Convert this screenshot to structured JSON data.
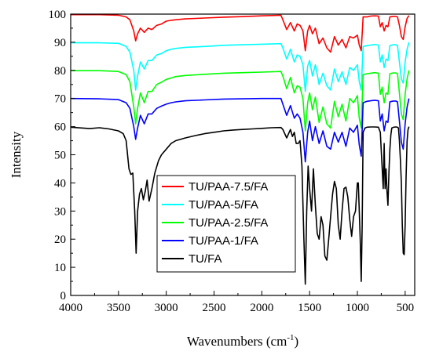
{
  "chart_data": {
    "type": "line",
    "title": "",
    "xlabel": "Wavenumbers (cm",
    "xlabel_sup": "-1",
    "xlabel_close": ")",
    "ylabel": "Intensity",
    "xlim": [
      4000,
      400
    ],
    "x_reversed": true,
    "ylim": [
      0,
      100
    ],
    "x_ticks": [
      4000,
      3500,
      3000,
      2500,
      2000,
      1500,
      1000,
      500
    ],
    "x_tick_labels": [
      "4000",
      "3500",
      "3000",
      "2500",
      "2000",
      "1500",
      "1000",
      "500"
    ],
    "y_ticks": [
      0,
      10,
      20,
      30,
      40,
      50,
      60,
      70,
      80,
      90,
      100
    ],
    "y_tick_labels": [
      "0",
      "10",
      "20",
      "30",
      "40",
      "50",
      "60",
      "70",
      "80",
      "90",
      "100"
    ],
    "grid": false,
    "legend_position": "center",
    "series": [
      {
        "name": "TU/PAA-7.5/FA",
        "color": "#ff0000",
        "x": [
          4000,
          3700,
          3500,
          3420,
          3380,
          3340,
          3320,
          3300,
          3270,
          3230,
          3190,
          3150,
          3100,
          3050,
          3000,
          2950,
          2900,
          2800,
          2600,
          2400,
          2200,
          2000,
          1800,
          1780,
          1740,
          1700,
          1660,
          1630,
          1600,
          1570,
          1545,
          1520,
          1500,
          1470,
          1440,
          1400,
          1360,
          1320,
          1280,
          1240,
          1200,
          1160,
          1120,
          1080,
          1040,
          1000,
          980,
          960,
          940,
          900,
          860,
          820,
          780,
          760,
          740,
          720,
          700,
          680,
          660,
          640,
          620,
          600,
          580,
          560,
          540,
          520,
          500,
          480,
          460
        ],
        "y": [
          99.8,
          99.8,
          99.6,
          99.0,
          98.0,
          94.0,
          90.5,
          93.0,
          95.0,
          93.5,
          95.0,
          94.5,
          96.0,
          96.5,
          97.5,
          97.8,
          98.0,
          98.3,
          98.6,
          98.9,
          99.1,
          99.4,
          99.6,
          98.0,
          94.5,
          97.0,
          94.0,
          96.5,
          96.0,
          94.0,
          87.0,
          94.0,
          96.0,
          93.0,
          95.0,
          89.5,
          91.5,
          88.0,
          86.5,
          92.0,
          89.0,
          91.0,
          88.0,
          92.0,
          91.5,
          92.5,
          89.0,
          87.0,
          99.0,
          99.0,
          99.3,
          99.4,
          99.3,
          95.5,
          97.0,
          94.0,
          96.0,
          95.5,
          99.0,
          99.1,
          99.2,
          99.2,
          99.0,
          96.0,
          92.0,
          91.0,
          95.5,
          98.5,
          99.5
        ]
      },
      {
        "name": "TU/PAA-5/FA",
        "color": "#00ffff",
        "x": [
          4000,
          3700,
          3500,
          3420,
          3380,
          3340,
          3320,
          3300,
          3270,
          3230,
          3190,
          3150,
          3100,
          3050,
          3000,
          2950,
          2900,
          2800,
          2600,
          2400,
          2200,
          2000,
          1800,
          1780,
          1740,
          1700,
          1660,
          1630,
          1600,
          1570,
          1545,
          1520,
          1500,
          1470,
          1440,
          1400,
          1360,
          1320,
          1280,
          1240,
          1200,
          1160,
          1120,
          1080,
          1040,
          1000,
          980,
          960,
          940,
          900,
          860,
          820,
          780,
          760,
          740,
          720,
          700,
          680,
          660,
          640,
          620,
          600,
          580,
          560,
          540,
          520,
          500,
          480,
          460
        ],
        "y": [
          89.8,
          89.8,
          89.6,
          88.5,
          86.5,
          80.0,
          73.0,
          78.0,
          83.0,
          80.5,
          83.5,
          83.5,
          85.5,
          86.0,
          87.0,
          87.5,
          87.8,
          88.2,
          88.5,
          88.9,
          89.1,
          89.3,
          89.5,
          88.0,
          84.0,
          87.5,
          83.0,
          85.5,
          85.0,
          82.0,
          72.5,
          81.5,
          83.5,
          78.0,
          82.0,
          75.0,
          79.0,
          74.5,
          73.0,
          80.5,
          76.0,
          79.5,
          75.0,
          81.0,
          80.0,
          82.0,
          76.0,
          73.0,
          88.5,
          88.8,
          89.0,
          89.2,
          89.0,
          83.0,
          85.5,
          81.0,
          84.0,
          83.5,
          88.8,
          89.0,
          89.1,
          89.1,
          88.8,
          83.0,
          77.0,
          75.5,
          83.0,
          87.5,
          90.0
        ]
      },
      {
        "name": "TU/PAA-2.5/FA",
        "color": "#00ff00",
        "x": [
          4000,
          3700,
          3500,
          3420,
          3380,
          3340,
          3320,
          3300,
          3270,
          3230,
          3190,
          3150,
          3100,
          3050,
          3000,
          2950,
          2900,
          2800,
          2600,
          2400,
          2200,
          2000,
          1800,
          1780,
          1740,
          1700,
          1660,
          1630,
          1600,
          1570,
          1545,
          1520,
          1500,
          1470,
          1440,
          1400,
          1360,
          1320,
          1280,
          1240,
          1200,
          1160,
          1120,
          1080,
          1040,
          1000,
          980,
          960,
          940,
          900,
          860,
          820,
          780,
          760,
          740,
          720,
          700,
          680,
          660,
          640,
          620,
          600,
          580,
          560,
          540,
          520,
          500,
          480,
          460
        ],
        "y": [
          79.9,
          79.9,
          79.6,
          78.5,
          76.0,
          67.0,
          61.0,
          66.5,
          72.0,
          68.5,
          72.5,
          72.5,
          75.0,
          75.8,
          76.8,
          77.3,
          77.8,
          78.2,
          78.6,
          79.0,
          79.2,
          79.4,
          79.6,
          78.0,
          73.5,
          77.5,
          72.0,
          74.5,
          74.0,
          70.0,
          58.5,
          68.5,
          72.0,
          66.0,
          70.5,
          61.5,
          67.0,
          61.0,
          59.5,
          69.0,
          63.5,
          68.0,
          62.0,
          70.0,
          68.5,
          71.0,
          63.0,
          59.5,
          78.5,
          78.8,
          79.0,
          79.2,
          79.0,
          71.5,
          74.0,
          68.5,
          72.0,
          71.5,
          78.8,
          79.0,
          79.1,
          79.1,
          78.8,
          72.0,
          64.5,
          62.5,
          71.5,
          77.0,
          80.0
        ]
      },
      {
        "name": "TU/PAA-1/FA",
        "color": "#0000ff",
        "x": [
          4000,
          3700,
          3500,
          3420,
          3380,
          3340,
          3320,
          3300,
          3270,
          3230,
          3190,
          3150,
          3100,
          3050,
          3000,
          2950,
          2900,
          2800,
          2600,
          2400,
          2200,
          2000,
          1800,
          1780,
          1740,
          1700,
          1660,
          1630,
          1600,
          1570,
          1545,
          1520,
          1500,
          1470,
          1440,
          1400,
          1360,
          1320,
          1280,
          1240,
          1200,
          1160,
          1120,
          1080,
          1040,
          1000,
          980,
          960,
          940,
          900,
          860,
          820,
          780,
          760,
          740,
          720,
          700,
          680,
          660,
          640,
          620,
          600,
          580,
          560,
          540,
          520,
          500,
          480,
          460
        ],
        "y": [
          70.0,
          69.9,
          69.6,
          68.5,
          66.5,
          60.0,
          55.5,
          59.5,
          64.0,
          61.0,
          64.5,
          64.5,
          66.5,
          67.3,
          68.0,
          68.5,
          68.8,
          69.2,
          69.5,
          69.8,
          69.9,
          70.0,
          70.0,
          68.0,
          64.0,
          67.5,
          63.0,
          64.5,
          63.0,
          58.0,
          47.5,
          58.0,
          62.0,
          55.0,
          60.0,
          54.0,
          58.5,
          53.0,
          52.0,
          58.0,
          54.5,
          58.0,
          53.0,
          59.5,
          58.0,
          60.5,
          53.5,
          49.5,
          68.5,
          69.0,
          69.2,
          69.4,
          69.2,
          62.0,
          64.5,
          58.5,
          62.0,
          61.5,
          68.8,
          69.0,
          69.1,
          69.1,
          68.8,
          62.0,
          54.5,
          52.0,
          61.0,
          67.0,
          70.0
        ]
      },
      {
        "name": "TU/FA",
        "color": "#000000",
        "x": [
          4000,
          3800,
          3700,
          3600,
          3500,
          3450,
          3420,
          3390,
          3370,
          3350,
          3330,
          3315,
          3300,
          3280,
          3260,
          3240,
          3220,
          3200,
          3180,
          3150,
          3120,
          3080,
          3050,
          3000,
          2950,
          2900,
          2800,
          2700,
          2600,
          2500,
          2400,
          2300,
          2200,
          2100,
          2000,
          1900,
          1800,
          1780,
          1740,
          1700,
          1680,
          1660,
          1640,
          1620,
          1600,
          1580,
          1560,
          1545,
          1530,
          1515,
          1500,
          1480,
          1460,
          1440,
          1420,
          1400,
          1380,
          1360,
          1340,
          1320,
          1300,
          1280,
          1260,
          1240,
          1220,
          1200,
          1180,
          1160,
          1140,
          1120,
          1100,
          1080,
          1060,
          1040,
          1020,
          1000,
          990,
          980,
          970,
          960,
          950,
          940,
          920,
          900,
          860,
          820,
          780,
          760,
          740,
          730,
          720,
          710,
          700,
          690,
          680,
          670,
          660,
          650,
          640,
          620,
          600,
          580,
          570,
          560,
          550,
          540,
          530,
          520,
          510,
          500,
          490,
          480,
          470,
          460
        ],
        "y": [
          59.8,
          59.3,
          59.6,
          59.2,
          58.5,
          57.5,
          55.0,
          45.0,
          43.0,
          43.5,
          30.0,
          15.0,
          30.0,
          36.0,
          38.0,
          34.0,
          37.0,
          41.0,
          33.5,
          38.0,
          43.5,
          48.0,
          50.0,
          52.0,
          54.0,
          55.0,
          56.0,
          56.8,
          57.5,
          58.0,
          58.5,
          58.8,
          59.0,
          59.2,
          59.4,
          59.6,
          59.7,
          59.0,
          56.0,
          59.0,
          56.5,
          58.0,
          54.0,
          54.0,
          55.0,
          46.0,
          20.0,
          4.0,
          30.0,
          46.0,
          38.0,
          30.0,
          45.0,
          32.0,
          22.0,
          20.0,
          28.0,
          25.0,
          14.0,
          12.5,
          20.0,
          28.0,
          36.0,
          40.5,
          38.0,
          25.0,
          20.0,
          30.0,
          38.0,
          38.5,
          35.0,
          27.0,
          21.0,
          28.0,
          30.0,
          40.0,
          40.0,
          30.0,
          20.0,
          5.0,
          25.0,
          58.0,
          59.5,
          59.8,
          59.9,
          59.9,
          59.8,
          58.0,
          45.0,
          38.0,
          54.0,
          38.0,
          45.0,
          37.0,
          32.0,
          44.0,
          52.0,
          57.0,
          59.5,
          59.8,
          59.9,
          59.8,
          59.5,
          55.0,
          48.0,
          40.0,
          25.0,
          15.0,
          14.5,
          25.0,
          42.0,
          55.0,
          59.0,
          60.0
        ]
      }
    ]
  }
}
